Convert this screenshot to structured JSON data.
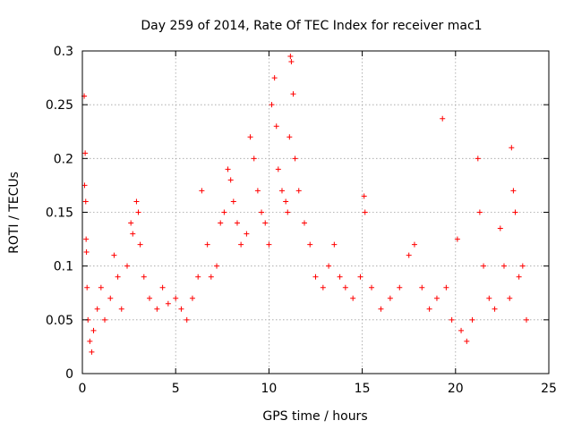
{
  "chart_data": {
    "type": "scatter",
    "title": "Day 259 of 2014, Rate Of TEC Index for receiver mac1",
    "xlabel": "GPS time / hours",
    "ylabel": "ROTI / TECUs",
    "xlim": [
      0,
      25
    ],
    "ylim": [
      0,
      0.3
    ],
    "xticks": [
      0,
      5,
      10,
      15,
      20,
      25
    ],
    "xtick_labels": [
      "0",
      "5",
      "10",
      "15",
      "20",
      "25"
    ],
    "yticks": [
      0,
      0.05,
      0.1,
      0.15,
      0.2,
      0.25,
      0.3
    ],
    "ytick_labels": [
      "0",
      "0.05",
      "0.1",
      "0.15",
      "0.2",
      "0.25",
      "0.3"
    ],
    "grid": true,
    "marker": "plus",
    "color": "#ff0000",
    "series": [
      {
        "name": "ROTI",
        "points": [
          [
            0.1,
            0.258
          ],
          [
            0.15,
            0.205
          ],
          [
            0.12,
            0.175
          ],
          [
            0.18,
            0.16
          ],
          [
            0.2,
            0.125
          ],
          [
            0.22,
            0.113
          ],
          [
            0.25,
            0.08
          ],
          [
            0.3,
            0.05
          ],
          [
            0.4,
            0.03
          ],
          [
            0.5,
            0.02
          ],
          [
            0.6,
            0.04
          ],
          [
            0.8,
            0.06
          ],
          [
            1.0,
            0.08
          ],
          [
            1.2,
            0.05
          ],
          [
            1.5,
            0.07
          ],
          [
            1.7,
            0.11
          ],
          [
            1.9,
            0.09
          ],
          [
            2.1,
            0.06
          ],
          [
            2.4,
            0.1
          ],
          [
            2.6,
            0.14
          ],
          [
            2.7,
            0.13
          ],
          [
            2.9,
            0.16
          ],
          [
            3.0,
            0.15
          ],
          [
            3.1,
            0.12
          ],
          [
            3.3,
            0.09
          ],
          [
            3.6,
            0.07
          ],
          [
            4.0,
            0.06
          ],
          [
            4.3,
            0.08
          ],
          [
            4.6,
            0.065
          ],
          [
            5.0,
            0.07
          ],
          [
            5.3,
            0.06
          ],
          [
            5.6,
            0.05
          ],
          [
            5.9,
            0.07
          ],
          [
            6.2,
            0.09
          ],
          [
            6.4,
            0.17
          ],
          [
            6.7,
            0.12
          ],
          [
            6.9,
            0.09
          ],
          [
            7.2,
            0.1
          ],
          [
            7.4,
            0.14
          ],
          [
            7.6,
            0.15
          ],
          [
            7.8,
            0.19
          ],
          [
            7.95,
            0.18
          ],
          [
            8.1,
            0.16
          ],
          [
            8.3,
            0.14
          ],
          [
            8.5,
            0.12
          ],
          [
            8.8,
            0.13
          ],
          [
            9.0,
            0.22
          ],
          [
            9.2,
            0.2
          ],
          [
            9.4,
            0.17
          ],
          [
            9.6,
            0.15
          ],
          [
            9.8,
            0.14
          ],
          [
            10.0,
            0.12
          ],
          [
            10.15,
            0.25
          ],
          [
            10.3,
            0.275
          ],
          [
            10.4,
            0.23
          ],
          [
            10.5,
            0.19
          ],
          [
            10.7,
            0.17
          ],
          [
            10.9,
            0.16
          ],
          [
            11.0,
            0.15
          ],
          [
            11.1,
            0.22
          ],
          [
            11.15,
            0.295
          ],
          [
            11.2,
            0.29
          ],
          [
            11.3,
            0.26
          ],
          [
            11.4,
            0.2
          ],
          [
            11.6,
            0.17
          ],
          [
            11.9,
            0.14
          ],
          [
            12.2,
            0.12
          ],
          [
            12.5,
            0.09
          ],
          [
            12.9,
            0.08
          ],
          [
            13.2,
            0.1
          ],
          [
            13.5,
            0.12
          ],
          [
            13.8,
            0.09
          ],
          [
            14.1,
            0.08
          ],
          [
            14.5,
            0.07
          ],
          [
            14.9,
            0.09
          ],
          [
            15.1,
            0.165
          ],
          [
            15.15,
            0.15
          ],
          [
            15.5,
            0.08
          ],
          [
            16.0,
            0.06
          ],
          [
            16.5,
            0.07
          ],
          [
            17.0,
            0.08
          ],
          [
            17.5,
            0.11
          ],
          [
            17.8,
            0.12
          ],
          [
            18.2,
            0.08
          ],
          [
            18.6,
            0.06
          ],
          [
            19.0,
            0.07
          ],
          [
            19.3,
            0.237
          ],
          [
            19.5,
            0.08
          ],
          [
            19.8,
            0.05
          ],
          [
            20.1,
            0.125
          ],
          [
            20.3,
            0.04
          ],
          [
            20.6,
            0.03
          ],
          [
            20.9,
            0.05
          ],
          [
            21.2,
            0.2
          ],
          [
            21.3,
            0.15
          ],
          [
            21.5,
            0.1
          ],
          [
            21.8,
            0.07
          ],
          [
            22.1,
            0.06
          ],
          [
            22.4,
            0.135
          ],
          [
            22.6,
            0.1
          ],
          [
            22.9,
            0.07
          ],
          [
            23.0,
            0.21
          ],
          [
            23.1,
            0.17
          ],
          [
            23.2,
            0.15
          ],
          [
            23.4,
            0.09
          ],
          [
            23.6,
            0.1
          ],
          [
            23.8,
            0.05
          ]
        ]
      }
    ]
  }
}
